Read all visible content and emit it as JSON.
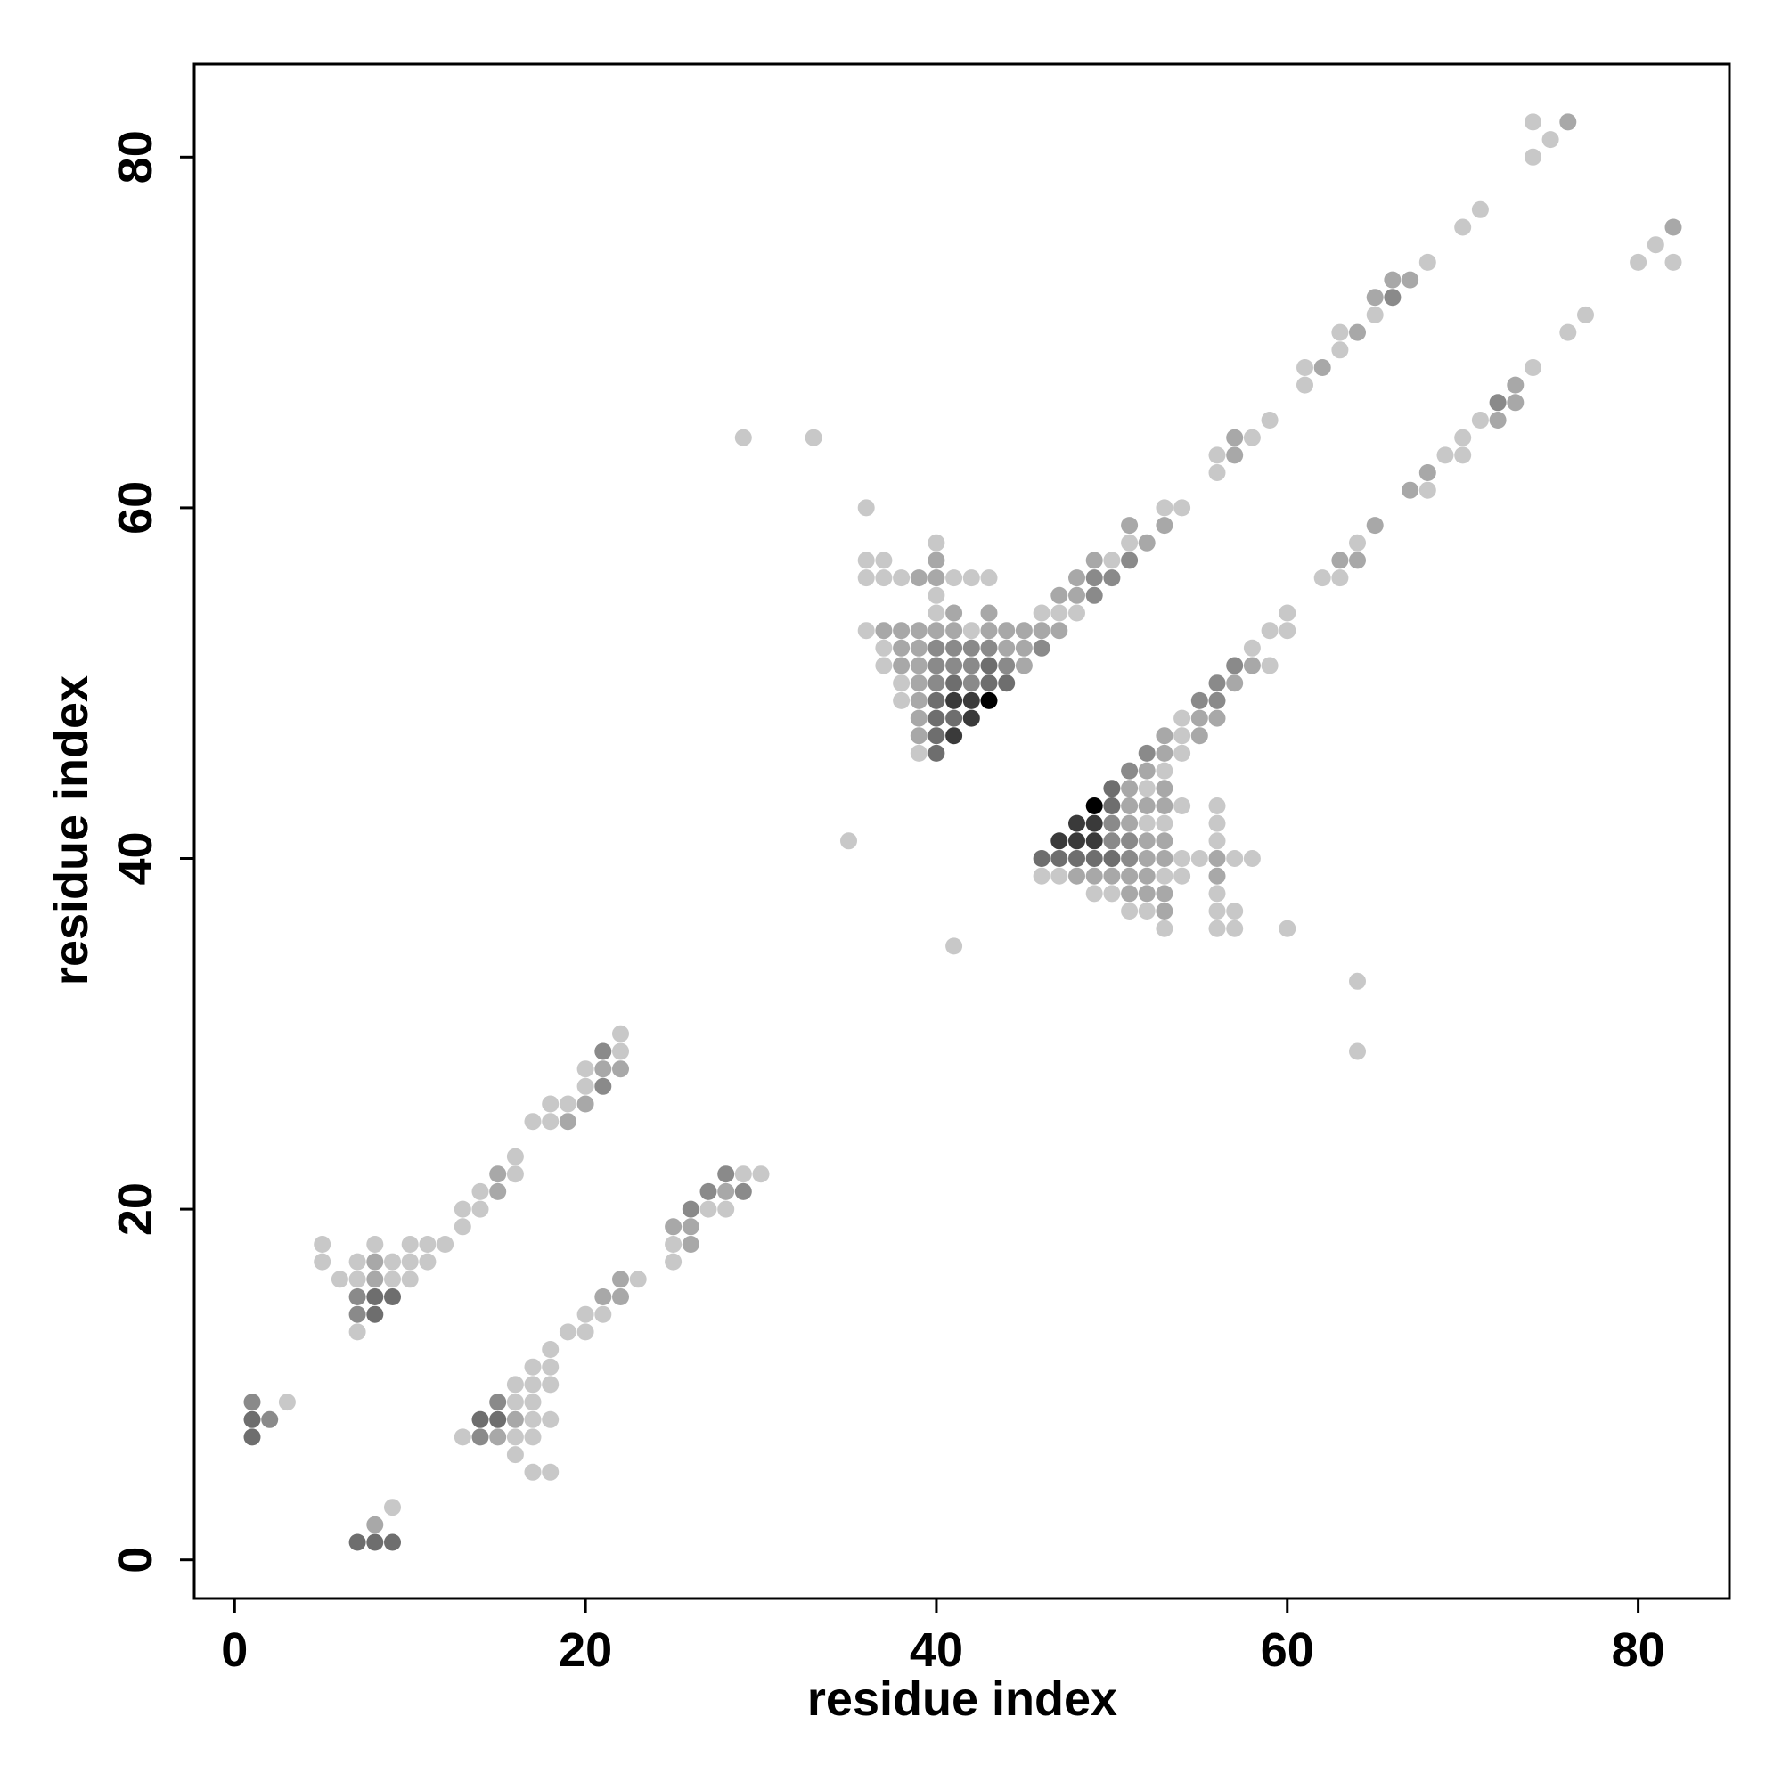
{
  "chart_data": {
    "type": "scatter",
    "title": "",
    "xlabel": "residue index",
    "ylabel": "residue index",
    "xlim": [
      -2.3,
      85.2
    ],
    "ylim": [
      -2.2,
      85.3
    ],
    "xticks": [
      0,
      20,
      40,
      60,
      80
    ],
    "yticks": [
      0,
      20,
      40,
      60,
      80
    ],
    "grid": false,
    "legend": "none",
    "color_scale": {
      "description": "gray shade encodes contact frequency (darker = higher)",
      "levels": {
        "1": "#c8c8c8",
        "2": "#a8a8a8",
        "3": "#8a8a8a",
        "4": "#6e6e6e",
        "5": "#3a3a3a",
        "6": "#000000"
      }
    },
    "points": [
      [
        1,
        9,
        3
      ],
      [
        1,
        8,
        4
      ],
      [
        1,
        7,
        4
      ],
      [
        2,
        8,
        3
      ],
      [
        3,
        9,
        1
      ],
      [
        8,
        2,
        2
      ],
      [
        9,
        3,
        1
      ],
      [
        7,
        1,
        4
      ],
      [
        8,
        1,
        4
      ],
      [
        9,
        1,
        4
      ],
      [
        5,
        18,
        1
      ],
      [
        5,
        17,
        1
      ],
      [
        6,
        16,
        1
      ],
      [
        7,
        17,
        1
      ],
      [
        7,
        16,
        1
      ],
      [
        7,
        15,
        3
      ],
      [
        7,
        14,
        3
      ],
      [
        7,
        13,
        1
      ],
      [
        8,
        18,
        1
      ],
      [
        8,
        17,
        2
      ],
      [
        8,
        16,
        2
      ],
      [
        8,
        15,
        4
      ],
      [
        8,
        14,
        4
      ],
      [
        9,
        17,
        1
      ],
      [
        9,
        16,
        1
      ],
      [
        9,
        15,
        4
      ],
      [
        10,
        18,
        1
      ],
      [
        10,
        17,
        1
      ],
      [
        10,
        16,
        1
      ],
      [
        11,
        18,
        1
      ],
      [
        11,
        17,
        1
      ],
      [
        12,
        18,
        1
      ],
      [
        13,
        20,
        1
      ],
      [
        13,
        19,
        1
      ],
      [
        14,
        21,
        1
      ],
      [
        14,
        20,
        1
      ],
      [
        15,
        22,
        2
      ],
      [
        15,
        21,
        2
      ],
      [
        16,
        23,
        1
      ],
      [
        16,
        22,
        1
      ],
      [
        17,
        25,
        1
      ],
      [
        18,
        26,
        1
      ],
      [
        18,
        25,
        1
      ],
      [
        19,
        26,
        1
      ],
      [
        19,
        25,
        2
      ],
      [
        20,
        28,
        1
      ],
      [
        20,
        27,
        1
      ],
      [
        20,
        26,
        2
      ],
      [
        21,
        29,
        3
      ],
      [
        21,
        28,
        2
      ],
      [
        21,
        27,
        3
      ],
      [
        22,
        30,
        1
      ],
      [
        22,
        29,
        1
      ],
      [
        22,
        28,
        2
      ],
      [
        13,
        7,
        1
      ],
      [
        14,
        8,
        4
      ],
      [
        14,
        7,
        3
      ],
      [
        15,
        9,
        3
      ],
      [
        15,
        8,
        4
      ],
      [
        15,
        7,
        2
      ],
      [
        16,
        10,
        1
      ],
      [
        16,
        9,
        1
      ],
      [
        16,
        8,
        2
      ],
      [
        16,
        7,
        1
      ],
      [
        16,
        6,
        1
      ],
      [
        17,
        11,
        1
      ],
      [
        17,
        10,
        1
      ],
      [
        17,
        9,
        1
      ],
      [
        17,
        8,
        1
      ],
      [
        17,
        7,
        1
      ],
      [
        17,
        5,
        1
      ],
      [
        18,
        12,
        1
      ],
      [
        18,
        11,
        1
      ],
      [
        18,
        10,
        1
      ],
      [
        18,
        8,
        1
      ],
      [
        18,
        5,
        1
      ],
      [
        19,
        13,
        1
      ],
      [
        20,
        14,
        1
      ],
      [
        20,
        13,
        1
      ],
      [
        21,
        15,
        2
      ],
      [
        21,
        14,
        1
      ],
      [
        22,
        16,
        2
      ],
      [
        22,
        15,
        2
      ],
      [
        23,
        16,
        1
      ],
      [
        25,
        19,
        2
      ],
      [
        25,
        18,
        1
      ],
      [
        25,
        17,
        1
      ],
      [
        26,
        20,
        3
      ],
      [
        26,
        19,
        2
      ],
      [
        26,
        18,
        2
      ],
      [
        27,
        21,
        3
      ],
      [
        27,
        20,
        1
      ],
      [
        28,
        22,
        3
      ],
      [
        28,
        21,
        2
      ],
      [
        28,
        20,
        1
      ],
      [
        29,
        22,
        1
      ],
      [
        29,
        21,
        3
      ],
      [
        30,
        22,
        1
      ],
      [
        29,
        64,
        1
      ],
      [
        33,
        64,
        1
      ],
      [
        35,
        41,
        1
      ],
      [
        41,
        35,
        1
      ],
      [
        64,
        33,
        1
      ],
      [
        64,
        29,
        1
      ],
      [
        36,
        60,
        1
      ],
      [
        36,
        57,
        1
      ],
      [
        36,
        56,
        1
      ],
      [
        36,
        53,
        1
      ],
      [
        37,
        57,
        1
      ],
      [
        37,
        56,
        1
      ],
      [
        37,
        53,
        2
      ],
      [
        37,
        52,
        1
      ],
      [
        37,
        51,
        1
      ],
      [
        38,
        56,
        1
      ],
      [
        38,
        53,
        2
      ],
      [
        38,
        52,
        2
      ],
      [
        38,
        51,
        2
      ],
      [
        38,
        50,
        1
      ],
      [
        38,
        49,
        1
      ],
      [
        39,
        56,
        2
      ],
      [
        39,
        53,
        2
      ],
      [
        39,
        52,
        2
      ],
      [
        39,
        51,
        2
      ],
      [
        39,
        50,
        2
      ],
      [
        39,
        49,
        2
      ],
      [
        39,
        48,
        2
      ],
      [
        39,
        47,
        2
      ],
      [
        39,
        46,
        1
      ],
      [
        40,
        58,
        1
      ],
      [
        40,
        57,
        2
      ],
      [
        40,
        56,
        2
      ],
      [
        40,
        55,
        1
      ],
      [
        40,
        54,
        1
      ],
      [
        40,
        53,
        2
      ],
      [
        40,
        52,
        3
      ],
      [
        40,
        51,
        3
      ],
      [
        40,
        50,
        3
      ],
      [
        40,
        49,
        4
      ],
      [
        40,
        48,
        4
      ],
      [
        40,
        47,
        4
      ],
      [
        40,
        46,
        4
      ],
      [
        41,
        56,
        1
      ],
      [
        41,
        54,
        2
      ],
      [
        41,
        53,
        2
      ],
      [
        41,
        52,
        3
      ],
      [
        41,
        51,
        3
      ],
      [
        41,
        50,
        4
      ],
      [
        41,
        49,
        5
      ],
      [
        41,
        48,
        4
      ],
      [
        41,
        47,
        5
      ],
      [
        42,
        56,
        1
      ],
      [
        42,
        53,
        1
      ],
      [
        42,
        52,
        3
      ],
      [
        42,
        51,
        3
      ],
      [
        42,
        50,
        3
      ],
      [
        42,
        49,
        5
      ],
      [
        42,
        48,
        5
      ],
      [
        43,
        56,
        1
      ],
      [
        43,
        54,
        2
      ],
      [
        43,
        53,
        2
      ],
      [
        43,
        52,
        3
      ],
      [
        43,
        51,
        4
      ],
      [
        43,
        50,
        4
      ],
      [
        43,
        49,
        6
      ],
      [
        44,
        53,
        2
      ],
      [
        44,
        52,
        2
      ],
      [
        44,
        51,
        3
      ],
      [
        44,
        50,
        4
      ],
      [
        45,
        53,
        2
      ],
      [
        45,
        52,
        2
      ],
      [
        45,
        51,
        2
      ],
      [
        46,
        54,
        1
      ],
      [
        46,
        53,
        2
      ],
      [
        46,
        52,
        3
      ],
      [
        47,
        54,
        1
      ],
      [
        47,
        53,
        2
      ],
      [
        47,
        55,
        2
      ],
      [
        48,
        56,
        2
      ],
      [
        48,
        55,
        2
      ],
      [
        48,
        54,
        1
      ],
      [
        49,
        57,
        2
      ],
      [
        49,
        56,
        3
      ],
      [
        49,
        55,
        3
      ],
      [
        50,
        57,
        1
      ],
      [
        50,
        56,
        3
      ],
      [
        51,
        59,
        2
      ],
      [
        51,
        58,
        1
      ],
      [
        51,
        57,
        3
      ],
      [
        52,
        58,
        2
      ],
      [
        53,
        60,
        1
      ],
      [
        53,
        59,
        2
      ],
      [
        54,
        60,
        1
      ],
      [
        56,
        63,
        1
      ],
      [
        56,
        62,
        1
      ],
      [
        57,
        64,
        2
      ],
      [
        57,
        63,
        2
      ],
      [
        58,
        64,
        1
      ],
      [
        59,
        65,
        1
      ],
      [
        61,
        68,
        1
      ],
      [
        61,
        67,
        1
      ],
      [
        62,
        68,
        2
      ],
      [
        63,
        70,
        1
      ],
      [
        63,
        69,
        1
      ],
      [
        64,
        70,
        2
      ],
      [
        65,
        72,
        2
      ],
      [
        65,
        71,
        1
      ],
      [
        66,
        73,
        2
      ],
      [
        66,
        72,
        3
      ],
      [
        67,
        73,
        2
      ],
      [
        68,
        74,
        1
      ],
      [
        70,
        76,
        1
      ],
      [
        71,
        77,
        1
      ],
      [
        74,
        82,
        1
      ],
      [
        74,
        80,
        1
      ],
      [
        75,
        81,
        1
      ],
      [
        76,
        82,
        2
      ],
      [
        46,
        40,
        4
      ],
      [
        46,
        39,
        1
      ],
      [
        47,
        41,
        5
      ],
      [
        47,
        40,
        4
      ],
      [
        47,
        39,
        1
      ],
      [
        48,
        42,
        5
      ],
      [
        48,
        41,
        5
      ],
      [
        48,
        40,
        4
      ],
      [
        48,
        39,
        2
      ],
      [
        49,
        43,
        6
      ],
      [
        49,
        42,
        5
      ],
      [
        49,
        41,
        5
      ],
      [
        49,
        40,
        4
      ],
      [
        49,
        39,
        2
      ],
      [
        49,
        38,
        1
      ],
      [
        50,
        44,
        4
      ],
      [
        50,
        43,
        4
      ],
      [
        50,
        42,
        3
      ],
      [
        50,
        41,
        3
      ],
      [
        50,
        40,
        4
      ],
      [
        50,
        39,
        2
      ],
      [
        50,
        38,
        1
      ],
      [
        51,
        45,
        3
      ],
      [
        51,
        44,
        2
      ],
      [
        51,
        43,
        2
      ],
      [
        51,
        42,
        2
      ],
      [
        51,
        41,
        3
      ],
      [
        51,
        40,
        3
      ],
      [
        51,
        39,
        2
      ],
      [
        51,
        38,
        2
      ],
      [
        51,
        37,
        1
      ],
      [
        52,
        46,
        3
      ],
      [
        52,
        45,
        2
      ],
      [
        52,
        44,
        1
      ],
      [
        52,
        43,
        2
      ],
      [
        52,
        42,
        1
      ],
      [
        52,
        41,
        2
      ],
      [
        52,
        40,
        2
      ],
      [
        52,
        39,
        2
      ],
      [
        52,
        38,
        2
      ],
      [
        52,
        37,
        1
      ],
      [
        53,
        47,
        2
      ],
      [
        53,
        46,
        2
      ],
      [
        53,
        45,
        1
      ],
      [
        53,
        44,
        2
      ],
      [
        53,
        43,
        2
      ],
      [
        53,
        42,
        1
      ],
      [
        53,
        41,
        2
      ],
      [
        53,
        40,
        2
      ],
      [
        53,
        39,
        1
      ],
      [
        53,
        38,
        2
      ],
      [
        53,
        37,
        2
      ],
      [
        53,
        36,
        1
      ],
      [
        54,
        48,
        1
      ],
      [
        54,
        47,
        1
      ],
      [
        54,
        46,
        1
      ],
      [
        54,
        43,
        1
      ],
      [
        54,
        40,
        1
      ],
      [
        54,
        39,
        1
      ],
      [
        55,
        49,
        3
      ],
      [
        55,
        48,
        2
      ],
      [
        55,
        47,
        2
      ],
      [
        55,
        40,
        1
      ],
      [
        56,
        50,
        3
      ],
      [
        56,
        49,
        3
      ],
      [
        56,
        48,
        2
      ],
      [
        56,
        43,
        1
      ],
      [
        56,
        42,
        1
      ],
      [
        56,
        41,
        1
      ],
      [
        56,
        40,
        2
      ],
      [
        56,
        39,
        2
      ],
      [
        56,
        38,
        1
      ],
      [
        56,
        37,
        1
      ],
      [
        56,
        36,
        1
      ],
      [
        57,
        51,
        3
      ],
      [
        57,
        50,
        2
      ],
      [
        57,
        40,
        1
      ],
      [
        57,
        37,
        1
      ],
      [
        57,
        36,
        1
      ],
      [
        58,
        52,
        1
      ],
      [
        58,
        51,
        2
      ],
      [
        58,
        40,
        1
      ],
      [
        59,
        53,
        1
      ],
      [
        59,
        51,
        1
      ],
      [
        60,
        54,
        1
      ],
      [
        60,
        53,
        1
      ],
      [
        60,
        36,
        1
      ],
      [
        62,
        56,
        1
      ],
      [
        63,
        57,
        2
      ],
      [
        63,
        56,
        1
      ],
      [
        64,
        58,
        1
      ],
      [
        64,
        57,
        2
      ],
      [
        65,
        59,
        2
      ],
      [
        67,
        61,
        2
      ],
      [
        68,
        62,
        2
      ],
      [
        68,
        61,
        1
      ],
      [
        69,
        63,
        1
      ],
      [
        70,
        64,
        1
      ],
      [
        70,
        63,
        1
      ],
      [
        71,
        65,
        1
      ],
      [
        72,
        66,
        3
      ],
      [
        72,
        65,
        2
      ],
      [
        73,
        67,
        2
      ],
      [
        73,
        66,
        2
      ],
      [
        74,
        68,
        1
      ],
      [
        76,
        70,
        1
      ],
      [
        77,
        71,
        1
      ],
      [
        80,
        74,
        1
      ],
      [
        81,
        75,
        1
      ],
      [
        82,
        76,
        2
      ],
      [
        82,
        74,
        1
      ]
    ]
  }
}
